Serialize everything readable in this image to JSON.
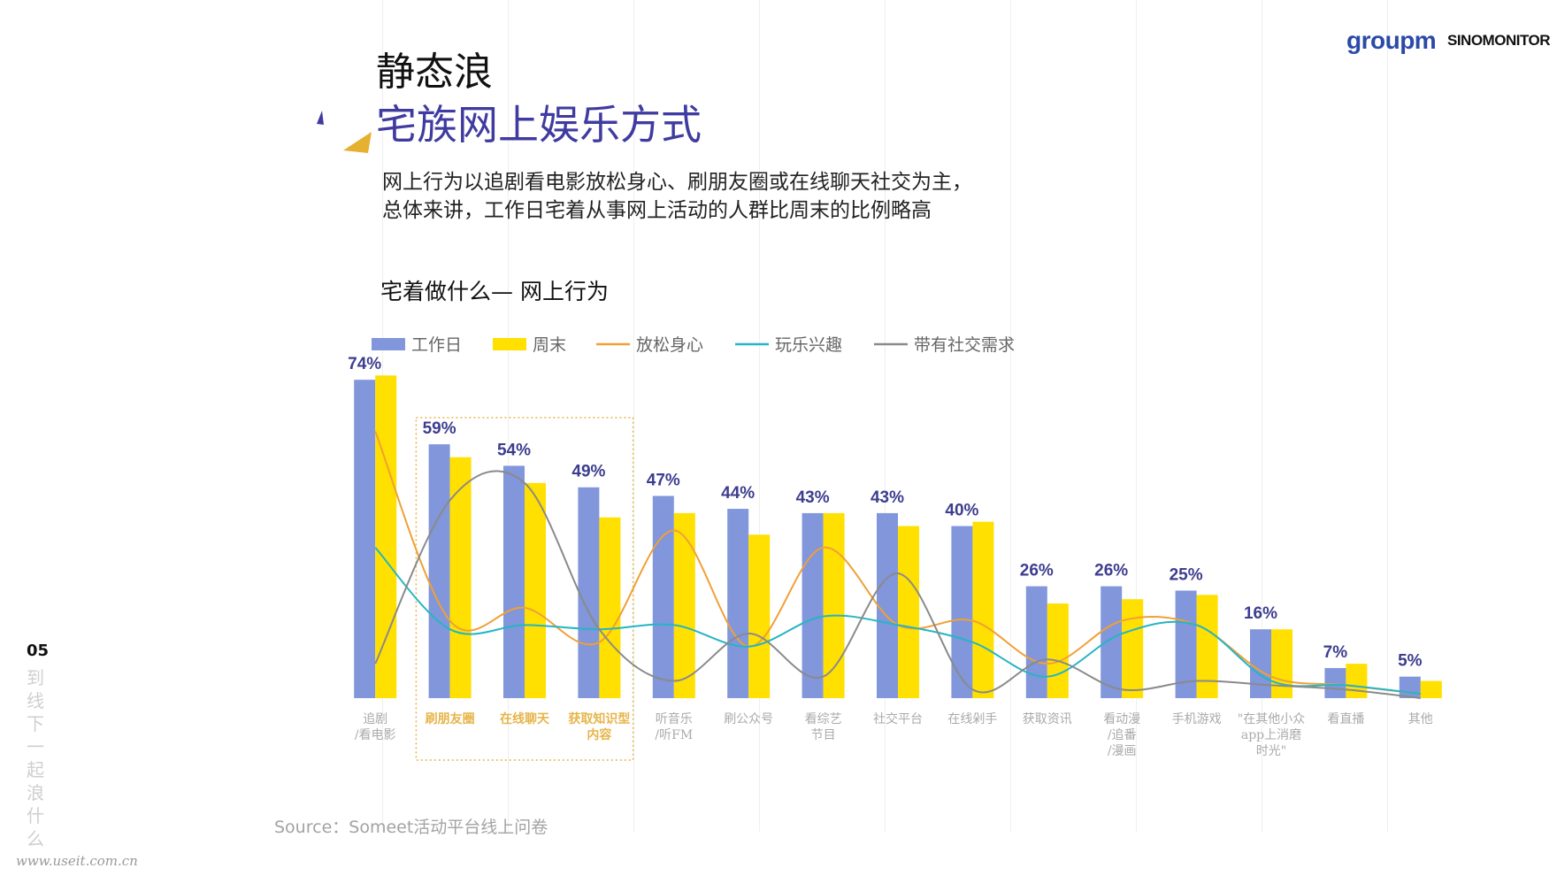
{
  "header": {
    "title_line1": "静态浪",
    "title_line2": "宅族网上娱乐方式",
    "description": "网上行为以追剧看电影放松身心、刷朋友圈或在线聊天社交为主，总体来讲，工作日宅着从事网上活动的人群比周末的比例略高",
    "subtitle": "宅着做什么— 网上行为"
  },
  "logos": {
    "group": "groupm",
    "sino": "SINOMONITOR"
  },
  "side": {
    "page_number": "05",
    "vertical_text": "到线下一起浪什么"
  },
  "footer": {
    "source": "Source：Someet活动平台线上问卷",
    "watermark": "www.useit.com.cn"
  },
  "colors": {
    "workday": "#8196db",
    "weekend": "#ffe000",
    "relax": "#f0a035",
    "fun": "#25b5c4",
    "social": "#8a8a8a",
    "label": "#3d3d8f",
    "highlight": "#e6b54a",
    "title_accent": "#3f3ba0"
  },
  "chart_data": {
    "type": "bar",
    "categories": [
      "追剧/看电影",
      "刷朋友圈",
      "在线聊天",
      "获取知识型内容",
      "听音乐/听FM",
      "刷公众号",
      "看综艺节目",
      "社交平台",
      "在线剁手",
      "获取资讯",
      "看动漫/追番/漫画",
      "手机游戏",
      "\"在其他小众app上消磨时光\"",
      "看直播",
      "其他"
    ],
    "category_lines": [
      [
        "追剧",
        "/看电影"
      ],
      [
        "刷朋友圈"
      ],
      [
        "在线聊天"
      ],
      [
        "获取知识型",
        "内容"
      ],
      [
        "听音乐",
        "/听FM"
      ],
      [
        "刷公众号"
      ],
      [
        "看综艺",
        "节目"
      ],
      [
        "社交平台"
      ],
      [
        "在线剁手"
      ],
      [
        "获取资讯"
      ],
      [
        "看动漫",
        "/追番",
        "/漫画"
      ],
      [
        "手机游戏"
      ],
      [
        "\"在其他小众",
        "app上消磨",
        "时光\""
      ],
      [
        "看直播"
      ],
      [
        "其他"
      ]
    ],
    "highlighted_categories": [
      1,
      2,
      3
    ],
    "data_labels": [
      "74%",
      "59%",
      "54%",
      "49%",
      "47%",
      "44%",
      "43%",
      "43%",
      "40%",
      "26%",
      "26%",
      "25%",
      "16%",
      "7%",
      "5%"
    ],
    "series": [
      {
        "name": "工作日",
        "kind": "bar",
        "values": [
          74,
          59,
          54,
          49,
          47,
          44,
          43,
          43,
          40,
          26,
          26,
          25,
          16,
          7,
          5
        ]
      },
      {
        "name": "周末",
        "kind": "bar",
        "values": [
          75,
          56,
          50,
          42,
          43,
          38,
          43,
          40,
          41,
          22,
          23,
          24,
          16,
          8,
          4
        ]
      },
      {
        "name": "放松身心",
        "kind": "line",
        "values": [
          62,
          18,
          21,
          13,
          39,
          12,
          35,
          17,
          18,
          8,
          18,
          17,
          5,
          3,
          1
        ]
      },
      {
        "name": "玩乐兴趣",
        "kind": "line",
        "values": [
          35,
          16,
          17,
          16,
          17,
          12,
          19,
          17,
          13,
          5,
          15,
          17,
          4,
          3,
          1
        ]
      },
      {
        "name": "带有社交需求",
        "kind": "line",
        "values": [
          8,
          46,
          50,
          16,
          4,
          15,
          5,
          29,
          2,
          9,
          2,
          4,
          3,
          2,
          0
        ]
      }
    ],
    "ylim": [
      0,
      80
    ],
    "legend_position": "top",
    "grid": false
  }
}
